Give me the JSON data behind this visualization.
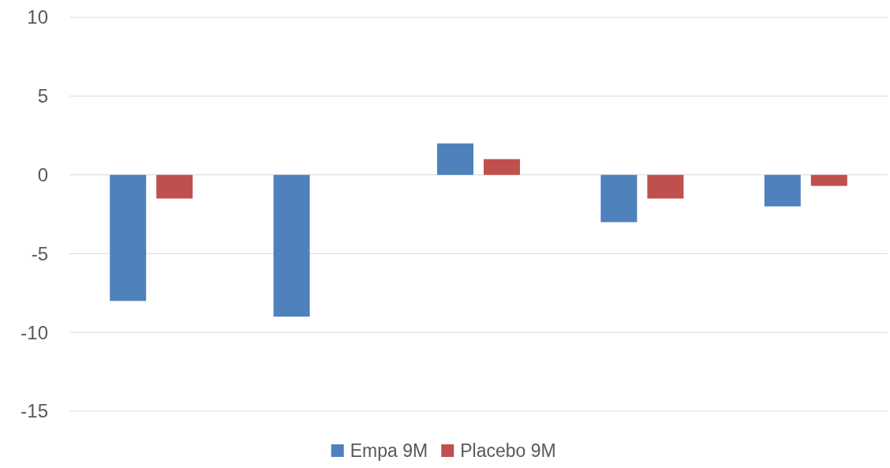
{
  "chart_data": {
    "type": "bar",
    "categories": [
      null,
      null,
      null,
      null,
      null
    ],
    "series": [
      {
        "name": "Empa 9M",
        "color": "#4f81bd",
        "values": [
          -8,
          -9,
          2,
          -3,
          -2
        ]
      },
      {
        "name": "Placebo 9M",
        "color": "#c0504d",
        "values": [
          -1.5,
          null,
          1,
          -1.5,
          -0.7
        ]
      }
    ],
    "ylim": [
      -15,
      10
    ],
    "yticks": [
      -15,
      -10,
      -5,
      0,
      5,
      10
    ],
    "grid": "y",
    "legend": "bottom"
  }
}
